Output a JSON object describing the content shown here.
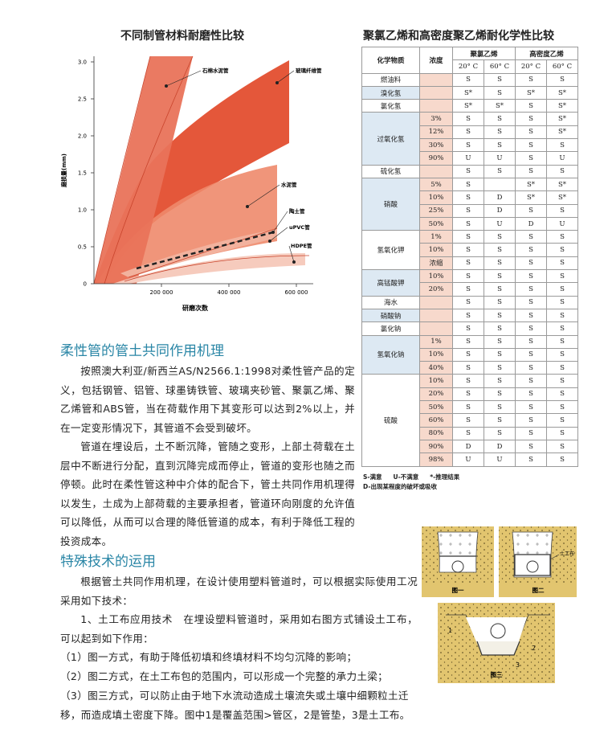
{
  "wear_chart": {
    "title": "不同制管材料耐磨性比较",
    "y_axis_label": "磨损量(mm)",
    "x_axis_label": "研磨次数",
    "yticks": [
      "0",
      "0.5",
      "1.0",
      "1.5",
      "2.0",
      "2.5",
      "3.0"
    ],
    "xticks": [
      "200 000",
      "400 000",
      "600 000"
    ],
    "curves": [
      "石棉水泥管",
      "玻璃纤维管",
      "水泥管",
      "陶土管",
      "uPVC管",
      "HDPE管"
    ]
  },
  "chem_table": {
    "title": "聚氯乙烯和高密度聚乙烯耐化学性比较",
    "header": {
      "substance": "化学物质",
      "concentration": "浓度",
      "pvc": "聚氯乙烯",
      "hdpe": "高密度乙烯",
      "temps": [
        "20° C",
        "60° C",
        "20° C",
        "60° C"
      ]
    },
    "groups": [
      {
        "substance": "燃油料",
        "rows": [
          {
            "results": [
              "S",
              "S",
              "S",
              "S"
            ]
          }
        ]
      },
      {
        "substance": "溴化氢",
        "rows": [
          {
            "results": [
              "S*",
              "S",
              "S*",
              "S*"
            ]
          }
        ]
      },
      {
        "substance": "氯化氢",
        "rows": [
          {
            "results": [
              "S*",
              "S*",
              "S",
              "S*"
            ]
          }
        ]
      },
      {
        "substance": "过氧化氢",
        "rows": [
          {
            "concentration": "3%",
            "results": [
              "S",
              "S",
              "S",
              "S*"
            ]
          },
          {
            "concentration": "12%",
            "results": [
              "S",
              "S",
              "S",
              "S*"
            ]
          },
          {
            "concentration": "30%",
            "results": [
              "S",
              "S",
              "S",
              "S"
            ]
          },
          {
            "concentration": "90%",
            "results": [
              "U",
              "U",
              "S",
              "U"
            ]
          }
        ]
      },
      {
        "substance": "硫化氢",
        "rows": [
          {
            "results": [
              "S",
              "S",
              "S",
              "S"
            ]
          }
        ]
      },
      {
        "substance": "硝酸",
        "rows": [
          {
            "concentration": "5%",
            "results": [
              "S",
              null,
              "S*",
              "S*"
            ]
          },
          {
            "concentration": "10%",
            "results": [
              "S",
              "D",
              "S*",
              "S*"
            ]
          },
          {
            "concentration": "25%",
            "results": [
              "S",
              "D",
              "S",
              "S"
            ]
          },
          {
            "concentration": "50%",
            "results": [
              "S",
              "U",
              "D",
              "U"
            ]
          }
        ]
      },
      {
        "substance": "氢氧化钾",
        "rows": [
          {
            "concentration": "1%",
            "results": [
              "S",
              "S",
              "S",
              "S"
            ]
          },
          {
            "concentration": "10%",
            "results": [
              "S",
              "S",
              "S",
              "S"
            ]
          },
          {
            "concentration": "浓缩",
            "results": [
              "S",
              "S",
              "S",
              "S"
            ]
          }
        ]
      },
      {
        "substance": "高锰酸钾",
        "rows": [
          {
            "concentration": "10%",
            "results": [
              "S",
              "S",
              "S",
              "S"
            ]
          },
          {
            "concentration": "20%",
            "results": [
              "S",
              "S",
              "S",
              "S"
            ]
          }
        ]
      },
      {
        "substance": "海水",
        "rows": [
          {
            "results": [
              "S",
              "S",
              "S",
              "S"
            ]
          }
        ]
      },
      {
        "substance": "硝酸钠",
        "rows": [
          {
            "results": [
              "S",
              "S",
              "S",
              "S"
            ]
          }
        ]
      },
      {
        "substance": "氯化钠",
        "rows": [
          {
            "results": [
              "S",
              "S",
              "S",
              "S"
            ]
          }
        ]
      },
      {
        "substance": "氢氧化钠",
        "rows": [
          {
            "concentration": "1%",
            "results": [
              "S",
              "S",
              "S",
              "S"
            ]
          },
          {
            "concentration": "10%",
            "results": [
              "S",
              "S",
              "S",
              "S"
            ]
          },
          {
            "concentration": "40%",
            "results": [
              "S",
              "S",
              "S",
              "S"
            ]
          }
        ]
      },
      {
        "substance": "硫酸",
        "rows": [
          {
            "concentration": "10%",
            "results": [
              "S",
              "S",
              "S",
              "S"
            ]
          },
          {
            "concentration": "20%",
            "results": [
              "S",
              "S",
              "S",
              "S"
            ]
          },
          {
            "concentration": "50%",
            "results": [
              "S",
              "S",
              "S",
              "S"
            ]
          },
          {
            "concentration": "60%",
            "results": [
              "S",
              "S",
              "S",
              "S"
            ]
          },
          {
            "concentration": "80%",
            "results": [
              "S",
              "S",
              "S",
              "S"
            ]
          },
          {
            "concentration": "90%",
            "results": [
              "D",
              "D",
              "S",
              "S"
            ]
          },
          {
            "concentration": "98%",
            "results": [
              "U",
              "U",
              "S",
              "S"
            ]
          }
        ]
      }
    ],
    "legend": [
      "S-满意",
      "U-不满意",
      "*-推理结果",
      "D-出现某程度的破坏或吸收"
    ]
  },
  "section1": {
    "heading": "柔性管的管土共同作用机理",
    "paragraphs": [
      "按照澳大利亚/新西兰AS/N2566.1:1998对柔性管产品的定义，包括钢管、铝管、球墨铸铁管、玻璃夹砂管、聚氯乙烯、聚乙烯管和ABS管，当在荷载作用下其变形可以达到2%以上，并在一定变形情况下，其管道不会受到破坏。",
      "管道在埋设后，土不断沉降，管随之变形，上部土荷载在土层中不断进行分配，直到沉降完成而停止，管道的变形也随之而停顿。此时在柔性管这种中介体的配合下，管土共同作用机理得以发生，土成为上部荷载的主要承担者，管道环向刚度的允许值可以降低，从而可以合理的降低管道的成本，有利于降低工程的投资成本。"
    ]
  },
  "section2": {
    "heading": "特殊技术的运用",
    "paragraphs": [
      "根据管土共同作用机理，在设计使用塑料管道时，可以根据实际使用工况采用如下技术：",
      "1、土工布应用技术　在埋设塑料管道时，采用如右图方式铺设土工布，可以起到如下作用："
    ],
    "items": [
      "（1）图一方式，有助于降低初填和终填材料不均匀沉降的影响；",
      "（2）图二方式，在土工布包的范围内，可以形成一个完整的承力土梁；",
      "（3）图三方式，可以防止由于地下水流动造成土壤流失或土壤中细颗粒土迁移，而造成填土密度下降。图中1是覆盖范围>管区，2是管垫，3是土工布。"
    ]
  },
  "figures": {
    "fig1": {
      "caption": "图一"
    },
    "fig2": {
      "caption": "图二",
      "label": "土工布"
    },
    "fig3": {
      "caption": "图三",
      "markers": [
        "1",
        "2",
        "3"
      ]
    }
  }
}
